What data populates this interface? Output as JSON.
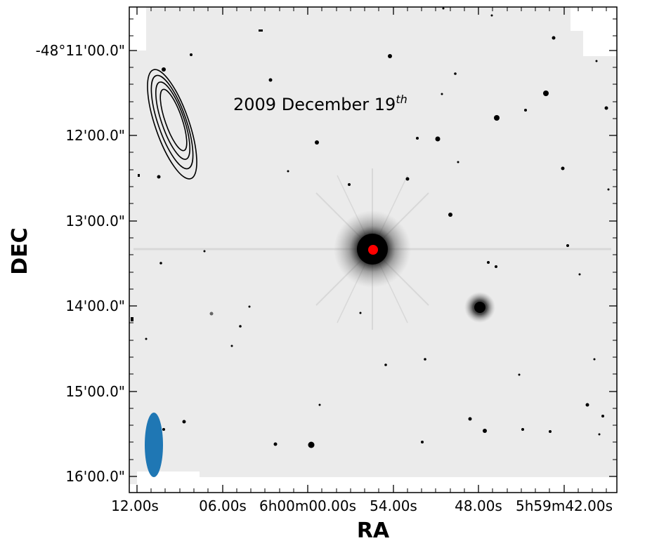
{
  "figure": {
    "annotation": {
      "text": "2009 December 19",
      "superscript": "th"
    },
    "x_axis": {
      "title": "RA",
      "tick_labels": [
        "12.00s",
        "06.00s",
        "6h00m00.00s",
        "54.00s",
        "48.00s",
        "5h59m42.00s"
      ]
    },
    "y_axis": {
      "title": "DEC",
      "tick_labels": [
        "-48°11'00.0\"",
        "12'00.0\"",
        "13'00.0\"",
        "14'00.0\"",
        "15'00.0\"",
        "16'00.0\""
      ]
    },
    "colors": {
      "background_sky": "#ebebeb",
      "source_marker": "#ff0000",
      "beam_ellipse": "#1f77b4",
      "contours": "#000000"
    }
  }
}
